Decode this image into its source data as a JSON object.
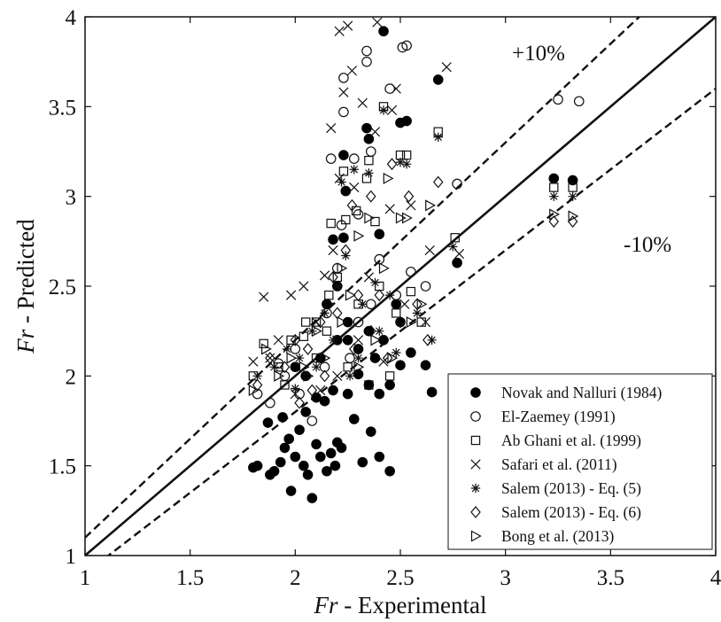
{
  "chart_data": {
    "type": "scatter",
    "xlabel_italic": "Fr",
    "xlabel_rest": " - Experimental",
    "ylabel_italic": "Fr",
    "ylabel_rest": " - Predicted",
    "xlim": [
      1,
      4
    ],
    "ylim": [
      1,
      4
    ],
    "xticks": [
      "1",
      "1.5",
      "2",
      "2.5",
      "3",
      "3.5",
      "4"
    ],
    "yticks": [
      "1",
      "1.5",
      "2",
      "2.5",
      "3",
      "3.5",
      "4"
    ],
    "grid": false,
    "legend_position": "bottom-right",
    "reference_lines": [
      {
        "label": "",
        "slope": 1.0,
        "style": "solid"
      },
      {
        "label": "+10%",
        "slope": 1.1,
        "style": "dashed"
      },
      {
        "label": "-10%",
        "slope": 0.9,
        "style": "dashed"
      }
    ],
    "band_labels": {
      "upper": "+10%",
      "lower": "-10%"
    },
    "series": [
      {
        "name": "Novak and Nalluri (1984)",
        "marker": "filled-circle",
        "points": [
          [
            1.8,
            1.49
          ],
          [
            1.82,
            1.5
          ],
          [
            1.88,
            1.45
          ],
          [
            1.9,
            1.47
          ],
          [
            1.93,
            1.52
          ],
          [
            1.95,
            1.6
          ],
          [
            1.97,
            1.65
          ],
          [
            1.98,
            1.36
          ],
          [
            2.0,
            1.55
          ],
          [
            2.02,
            1.7
          ],
          [
            2.04,
            1.5
          ],
          [
            2.06,
            1.45
          ],
          [
            2.08,
            1.32
          ],
          [
            2.1,
            1.62
          ],
          [
            2.12,
            1.55
          ],
          [
            2.15,
            1.47
          ],
          [
            2.17,
            1.57
          ],
          [
            2.19,
            1.5
          ],
          [
            2.2,
            1.63
          ],
          [
            2.22,
            1.6
          ],
          [
            2.28,
            1.76
          ],
          [
            2.32,
            1.52
          ],
          [
            2.36,
            1.69
          ],
          [
            2.4,
            1.55
          ],
          [
            2.45,
            1.47
          ],
          [
            1.87,
            1.74
          ],
          [
            1.94,
            1.77
          ],
          [
            2.05,
            1.8
          ],
          [
            2.1,
            1.88
          ],
          [
            2.14,
            1.86
          ],
          [
            2.18,
            1.92
          ],
          [
            2.25,
            1.9
          ],
          [
            2.3,
            2.01
          ],
          [
            2.35,
            1.95
          ],
          [
            2.4,
            1.9
          ],
          [
            2.45,
            1.95
          ],
          [
            2.5,
            2.06
          ],
          [
            2.55,
            2.13
          ],
          [
            2.62,
            2.06
          ],
          [
            2.65,
            1.91
          ],
          [
            2.0,
            2.05
          ],
          [
            2.05,
            2.0
          ],
          [
            2.12,
            2.1
          ],
          [
            2.2,
            2.2
          ],
          [
            2.25,
            2.3
          ],
          [
            2.3,
            2.15
          ],
          [
            2.35,
            2.25
          ],
          [
            2.38,
            2.1
          ],
          [
            2.42,
            2.2
          ],
          [
            2.48,
            2.4
          ],
          [
            2.5,
            2.3
          ],
          [
            2.15,
            2.4
          ],
          [
            2.2,
            2.5
          ],
          [
            2.25,
            2.2
          ],
          [
            2.18,
            2.76
          ],
          [
            2.23,
            2.77
          ],
          [
            2.24,
            3.03
          ],
          [
            2.23,
            3.23
          ],
          [
            2.34,
            3.38
          ],
          [
            2.35,
            3.32
          ],
          [
            2.5,
            3.41
          ],
          [
            2.53,
            3.42
          ],
          [
            2.4,
            2.79
          ],
          [
            2.68,
            3.65
          ],
          [
            2.42,
            3.92
          ],
          [
            2.77,
            2.63
          ],
          [
            3.23,
            3.1
          ],
          [
            3.32,
            3.09
          ]
        ]
      },
      {
        "name": "El-Zaemey (1991)",
        "marker": "open-circle",
        "points": [
          [
            1.82,
            1.9
          ],
          [
            1.88,
            1.85
          ],
          [
            1.95,
            2.0
          ],
          [
            2.02,
            1.9
          ],
          [
            2.08,
            1.75
          ],
          [
            2.14,
            2.05
          ],
          [
            2.2,
            2.2
          ],
          [
            2.26,
            2.1
          ],
          [
            2.3,
            2.3
          ],
          [
            2.36,
            2.4
          ],
          [
            2.42,
            2.2
          ],
          [
            2.48,
            2.45
          ],
          [
            2.55,
            2.58
          ],
          [
            2.62,
            2.5
          ],
          [
            2.2,
            2.6
          ],
          [
            2.22,
            2.84
          ],
          [
            2.3,
            2.9
          ],
          [
            2.28,
            3.21
          ],
          [
            2.36,
            3.25
          ],
          [
            2.34,
            3.75
          ],
          [
            2.34,
            3.81
          ],
          [
            2.23,
            3.66
          ],
          [
            2.23,
            3.47
          ],
          [
            2.17,
            3.21
          ],
          [
            2.45,
            3.6
          ],
          [
            2.51,
            3.83
          ],
          [
            2.53,
            3.84
          ],
          [
            2.77,
            3.07
          ],
          [
            3.25,
            3.54
          ],
          [
            3.35,
            3.53
          ],
          [
            2.4,
            2.65
          ],
          [
            2.15,
            2.35
          ],
          [
            2.0,
            2.15
          ],
          [
            1.92,
            2.07
          ]
        ]
      },
      {
        "name": "Ab Ghani et al. (1999)",
        "marker": "open-square",
        "points": [
          [
            1.8,
            2.0
          ],
          [
            1.85,
            2.18
          ],
          [
            1.92,
            2.05
          ],
          [
            1.98,
            2.2
          ],
          [
            2.04,
            2.22
          ],
          [
            2.1,
            2.3
          ],
          [
            2.16,
            2.45
          ],
          [
            2.2,
            2.55
          ],
          [
            2.24,
            2.87
          ],
          [
            2.29,
            2.92
          ],
          [
            2.38,
            2.86
          ],
          [
            2.34,
            3.1
          ],
          [
            2.35,
            3.2
          ],
          [
            2.23,
            3.14
          ],
          [
            2.42,
            3.5
          ],
          [
            2.5,
            3.23
          ],
          [
            2.53,
            3.23
          ],
          [
            2.68,
            3.36
          ],
          [
            2.76,
            2.77
          ],
          [
            2.6,
            2.3
          ],
          [
            2.55,
            2.47
          ],
          [
            2.45,
            2.0
          ],
          [
            2.35,
            1.95
          ],
          [
            2.25,
            2.05
          ],
          [
            2.15,
            2.25
          ],
          [
            2.05,
            2.3
          ],
          [
            1.95,
            1.95
          ],
          [
            3.23,
            3.05
          ],
          [
            3.32,
            3.05
          ],
          [
            2.3,
            2.4
          ],
          [
            2.4,
            2.5
          ],
          [
            2.1,
            2.1
          ],
          [
            2.48,
            2.35
          ],
          [
            2.17,
            2.85
          ]
        ]
      },
      {
        "name": "Safari et al. (2011)",
        "marker": "x",
        "points": [
          [
            1.8,
            2.08
          ],
          [
            1.85,
            2.44
          ],
          [
            1.88,
            2.1
          ],
          [
            1.92,
            2.2
          ],
          [
            1.98,
            2.45
          ],
          [
            2.04,
            2.5
          ],
          [
            2.1,
            2.3
          ],
          [
            2.14,
            2.56
          ],
          [
            2.18,
            2.7
          ],
          [
            2.21,
            3.1
          ],
          [
            2.17,
            3.38
          ],
          [
            2.23,
            3.58
          ],
          [
            2.27,
            3.7
          ],
          [
            2.21,
            3.92
          ],
          [
            2.25,
            3.95
          ],
          [
            2.39,
            3.97
          ],
          [
            2.46,
            3.48
          ],
          [
            2.48,
            3.6
          ],
          [
            2.32,
            3.52
          ],
          [
            2.38,
            3.36
          ],
          [
            2.28,
            3.05
          ],
          [
            2.45,
            2.93
          ],
          [
            2.55,
            2.95
          ],
          [
            2.64,
            2.7
          ],
          [
            2.72,
            3.72
          ],
          [
            2.78,
            2.68
          ],
          [
            2.35,
            2.55
          ],
          [
            2.3,
            2.2
          ],
          [
            2.2,
            2.0
          ],
          [
            2.0,
            1.9
          ],
          [
            2.12,
            1.92
          ],
          [
            2.42,
            2.08
          ],
          [
            2.52,
            2.4
          ],
          [
            2.62,
            2.3
          ]
        ]
      },
      {
        "name": "Salem (2013) - Eq. (5)",
        "marker": "asterisk",
        "points": [
          [
            1.82,
            2.0
          ],
          [
            1.9,
            2.05
          ],
          [
            1.96,
            2.15
          ],
          [
            2.02,
            2.1
          ],
          [
            2.08,
            2.25
          ],
          [
            2.14,
            2.35
          ],
          [
            2.2,
            2.5
          ],
          [
            2.24,
            2.67
          ],
          [
            2.22,
            3.08
          ],
          [
            2.28,
            3.15
          ],
          [
            2.35,
            3.13
          ],
          [
            2.42,
            3.48
          ],
          [
            2.5,
            3.19
          ],
          [
            2.53,
            3.18
          ],
          [
            2.68,
            3.33
          ],
          [
            2.75,
            2.72
          ],
          [
            2.65,
            2.2
          ],
          [
            2.58,
            2.35
          ],
          [
            2.48,
            2.13
          ],
          [
            2.4,
            2.25
          ],
          [
            2.32,
            2.4
          ],
          [
            2.26,
            2.0
          ],
          [
            2.18,
            2.2
          ],
          [
            2.1,
            2.05
          ],
          [
            2.0,
            1.93
          ],
          [
            3.23,
            3.0
          ],
          [
            3.32,
            3.0
          ],
          [
            2.38,
            2.52
          ],
          [
            2.3,
            2.1
          ],
          [
            2.45,
            2.45
          ]
        ]
      },
      {
        "name": "Salem (2013) - Eq. (6)",
        "marker": "open-diamond",
        "points": [
          [
            1.82,
            1.95
          ],
          [
            1.88,
            2.1
          ],
          [
            1.95,
            2.05
          ],
          [
            2.0,
            2.2
          ],
          [
            2.06,
            2.15
          ],
          [
            2.12,
            2.3
          ],
          [
            2.18,
            2.55
          ],
          [
            2.24,
            2.7
          ],
          [
            2.27,
            2.95
          ],
          [
            2.36,
            3.0
          ],
          [
            2.46,
            3.18
          ],
          [
            2.54,
            3.0
          ],
          [
            2.68,
            3.08
          ],
          [
            2.63,
            2.2
          ],
          [
            2.58,
            2.4
          ],
          [
            2.5,
            2.3
          ],
          [
            2.44,
            2.1
          ],
          [
            2.36,
            2.25
          ],
          [
            2.28,
            2.15
          ],
          [
            2.2,
            2.35
          ],
          [
            2.14,
            2.0
          ],
          [
            2.08,
            1.92
          ],
          [
            2.02,
            1.85
          ],
          [
            3.23,
            2.86
          ],
          [
            3.32,
            2.86
          ],
          [
            2.4,
            2.45
          ],
          [
            2.3,
            2.45
          ]
        ]
      },
      {
        "name": "Bong et al. (2013)",
        "marker": "open-triangle-right",
        "points": [
          [
            1.8,
            1.92
          ],
          [
            1.86,
            2.15
          ],
          [
            1.92,
            2.0
          ],
          [
            1.98,
            2.1
          ],
          [
            2.04,
            2.05
          ],
          [
            2.1,
            2.25
          ],
          [
            2.16,
            2.4
          ],
          [
            2.22,
            2.6
          ],
          [
            2.3,
            2.78
          ],
          [
            2.35,
            2.88
          ],
          [
            2.44,
            3.1
          ],
          [
            2.5,
            2.88
          ],
          [
            2.53,
            2.88
          ],
          [
            2.64,
            2.95
          ],
          [
            2.6,
            2.4
          ],
          [
            2.55,
            2.3
          ],
          [
            2.46,
            2.1
          ],
          [
            2.38,
            2.2
          ],
          [
            2.3,
            2.05
          ],
          [
            2.22,
            2.3
          ],
          [
            2.14,
            2.1
          ],
          [
            2.06,
            2.0
          ],
          [
            3.23,
            2.9
          ],
          [
            3.32,
            2.89
          ],
          [
            2.42,
            2.6
          ],
          [
            2.26,
            2.45
          ]
        ]
      }
    ]
  }
}
